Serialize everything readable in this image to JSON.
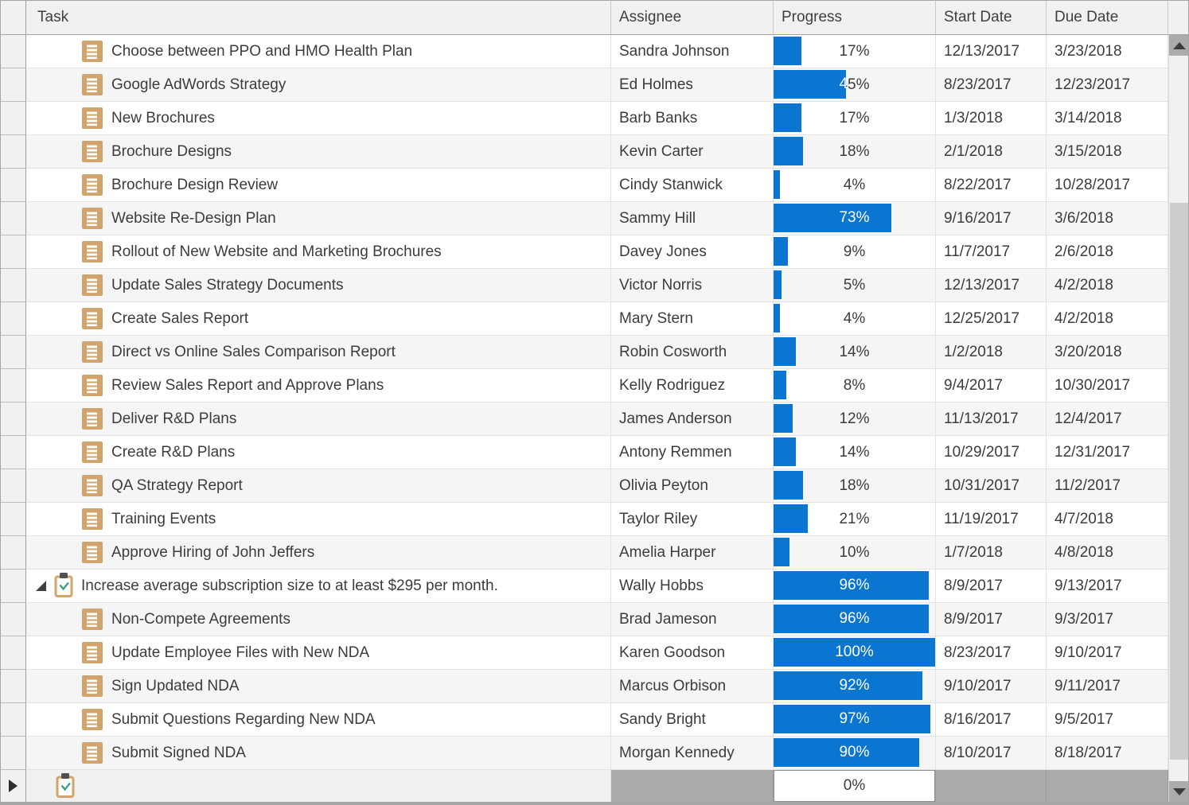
{
  "header": {
    "task": "Task",
    "assignee": "Assignee",
    "progress": "Progress",
    "start_date": "Start Date",
    "due_date": "Due Date"
  },
  "colors": {
    "progress_bar": "#0b76d1",
    "task_icon": "#d1a46d",
    "clipboard_clip": "#4f4f4f",
    "clipboard_check": "#3da08c",
    "header_bg": "#f1f1f1",
    "alt_row_bg": "#f5f5f6",
    "new_row_disabled_cell_bg": "#ababab",
    "text": "#3c3c3c"
  },
  "rows": [
    {
      "type": "task",
      "task": "Choose between PPO and HMO Health Plan",
      "assignee": "Sandra Johnson",
      "progress": "17%",
      "progress_value": 17,
      "start": "12/13/2017",
      "due": "3/23/2018"
    },
    {
      "type": "task",
      "task": "Google AdWords Strategy",
      "assignee": "Ed Holmes",
      "progress": "45%",
      "progress_value": 45,
      "start": "8/23/2017",
      "due": "12/23/2017"
    },
    {
      "type": "task",
      "task": "New Brochures",
      "assignee": "Barb Banks",
      "progress": "17%",
      "progress_value": 17,
      "start": "1/3/2018",
      "due": "3/14/2018"
    },
    {
      "type": "task",
      "task": "Brochure Designs",
      "assignee": "Kevin Carter",
      "progress": "18%",
      "progress_value": 18,
      "start": "2/1/2018",
      "due": "3/15/2018"
    },
    {
      "type": "task",
      "task": "Brochure Design Review",
      "assignee": "Cindy Stanwick",
      "progress": "4%",
      "progress_value": 4,
      "start": "8/22/2017",
      "due": "10/28/2017"
    },
    {
      "type": "task",
      "task": "Website Re-Design Plan",
      "assignee": "Sammy Hill",
      "progress": "73%",
      "progress_value": 73,
      "start": "9/16/2017",
      "due": "3/6/2018"
    },
    {
      "type": "task",
      "task": "Rollout of New Website and Marketing Brochures",
      "assignee": "Davey Jones",
      "progress": "9%",
      "progress_value": 9,
      "start": "11/7/2017",
      "due": "2/6/2018"
    },
    {
      "type": "task",
      "task": "Update Sales Strategy Documents",
      "assignee": "Victor Norris",
      "progress": "5%",
      "progress_value": 5,
      "start": "12/13/2017",
      "due": "4/2/2018"
    },
    {
      "type": "task",
      "task": "Create Sales Report",
      "assignee": "Mary Stern",
      "progress": "4%",
      "progress_value": 4,
      "start": "12/25/2017",
      "due": "4/2/2018"
    },
    {
      "type": "task",
      "task": "Direct vs Online Sales Comparison Report",
      "assignee": "Robin Cosworth",
      "progress": "14%",
      "progress_value": 14,
      "start": "1/2/2018",
      "due": "3/20/2018"
    },
    {
      "type": "task",
      "task": "Review Sales Report and Approve Plans",
      "assignee": "Kelly Rodriguez",
      "progress": "8%",
      "progress_value": 8,
      "start": "9/4/2017",
      "due": "10/30/2017"
    },
    {
      "type": "task",
      "task": "Deliver R&D Plans",
      "assignee": "James Anderson",
      "progress": "12%",
      "progress_value": 12,
      "start": "11/13/2017",
      "due": "12/4/2017"
    },
    {
      "type": "task",
      "task": "Create R&D Plans",
      "assignee": "Antony Remmen",
      "progress": "14%",
      "progress_value": 14,
      "start": "10/29/2017",
      "due": "12/31/2017"
    },
    {
      "type": "task",
      "task": "QA Strategy Report",
      "assignee": "Olivia Peyton",
      "progress": "18%",
      "progress_value": 18,
      "start": "10/31/2017",
      "due": "11/2/2017"
    },
    {
      "type": "task",
      "task": "Training Events",
      "assignee": "Taylor Riley",
      "progress": "21%",
      "progress_value": 21,
      "start": "11/19/2017",
      "due": "4/7/2018"
    },
    {
      "type": "task",
      "task": "Approve Hiring of John Jeffers",
      "assignee": "Amelia Harper",
      "progress": "10%",
      "progress_value": 10,
      "start": "1/7/2018",
      "due": "4/8/2018"
    },
    {
      "type": "project",
      "expanded": true,
      "task": "Increase average subscription size to at least $295 per month.",
      "assignee": "Wally Hobbs",
      "progress": "96%",
      "progress_value": 96,
      "start": "8/9/2017",
      "due": "9/13/2017"
    },
    {
      "type": "task",
      "task": "Non-Compete Agreements",
      "assignee": "Brad Jameson",
      "progress": "96%",
      "progress_value": 96,
      "start": "8/9/2017",
      "due": "9/3/2017"
    },
    {
      "type": "task",
      "task": "Update Employee Files with New NDA",
      "assignee": "Karen Goodson",
      "progress": "100%",
      "progress_value": 100,
      "start": "8/23/2017",
      "due": "9/10/2017"
    },
    {
      "type": "task",
      "task": "Sign Updated NDA",
      "assignee": "Marcus Orbison",
      "progress": "92%",
      "progress_value": 92,
      "start": "9/10/2017",
      "due": "9/11/2017"
    },
    {
      "type": "task",
      "task": "Submit Questions Regarding New NDA",
      "assignee": "Sandy Bright",
      "progress": "97%",
      "progress_value": 97,
      "start": "8/16/2017",
      "due": "9/5/2017"
    },
    {
      "type": "task",
      "task": "Submit Signed NDA",
      "assignee": "Morgan Kennedy",
      "progress": "90%",
      "progress_value": 90,
      "start": "8/10/2017",
      "due": "8/18/2017"
    }
  ],
  "new_row": {
    "progress": "0%",
    "progress_value": 0
  }
}
